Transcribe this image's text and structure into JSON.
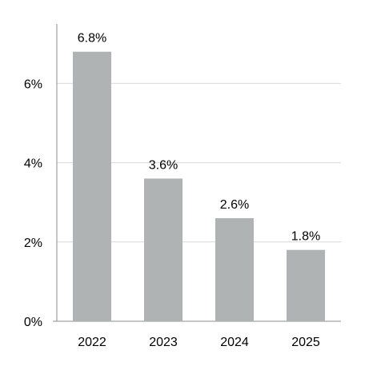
{
  "chart_data": {
    "type": "bar",
    "categories": [
      "2022",
      "2023",
      "2024",
      "2025"
    ],
    "values": [
      6.8,
      3.6,
      2.6,
      1.8
    ],
    "data_labels": [
      "6.8%",
      "3.6%",
      "2.6%",
      "1.8%"
    ],
    "y_ticks": [
      0,
      2,
      4,
      6
    ],
    "y_tick_labels": [
      "0%",
      "2%",
      "4%",
      "6%"
    ],
    "ylim": [
      0,
      7.5
    ],
    "grid": true,
    "legend": "none",
    "title": "",
    "xlabel": "",
    "ylabel": "",
    "colors": {
      "bar": "#b0b3b3",
      "grid": "#d9d9d9",
      "axis": "#8c8c8c",
      "text": "#000000"
    }
  }
}
